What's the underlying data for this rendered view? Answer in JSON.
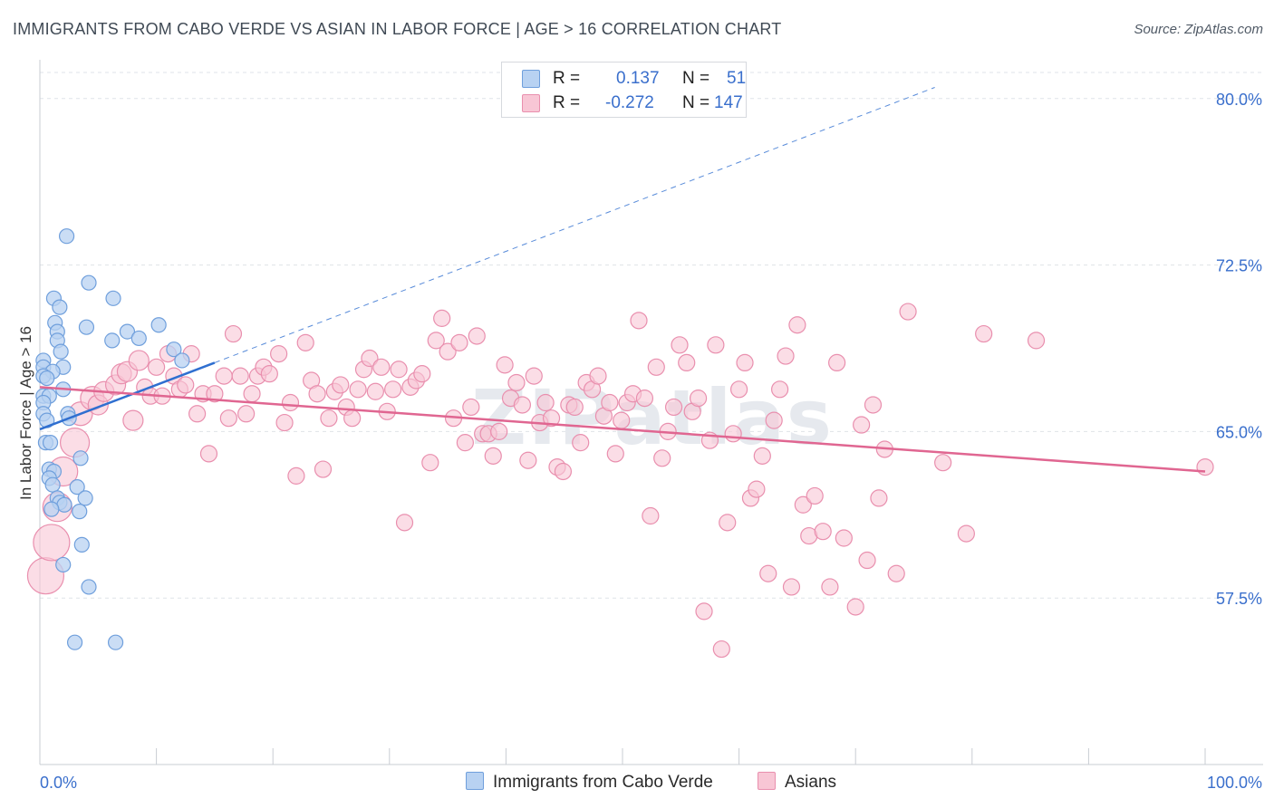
{
  "title": "IMMIGRANTS FROM CABO VERDE VS ASIAN IN LABOR FORCE | AGE > 16 CORRELATION CHART",
  "source": "Source: ZipAtlas.com",
  "watermark": "ZIPatlas",
  "legend": {
    "rows": [
      {
        "r_label": "R =",
        "r_value": "0.137",
        "n_label": "N =",
        "n_value": "51"
      },
      {
        "r_label": "R =",
        "r_value": "-0.272",
        "n_label": "N =",
        "n_value": "147"
      }
    ]
  },
  "chart_data": {
    "type": "scatter",
    "xlabel": "",
    "ylabel": "In Labor Force | Age > 16",
    "xlim": [
      0,
      100
    ],
    "ylim": [
      50.0,
      81.5
    ],
    "x_tick_labels": [
      "0.0%",
      "100.0%"
    ],
    "y_ticks": [
      57.5,
      65.0,
      72.5,
      80.0
    ],
    "y_tick_labels": [
      "57.5%",
      "65.0%",
      "72.5%",
      "80.0%"
    ],
    "grid": true,
    "legend_position": "top-center",
    "colors": {
      "series1_fill": "#b8d2f2",
      "series1_stroke": "#6f9fdc",
      "series1_line": "#2f6fd0",
      "series2_fill": "#f8c6d5",
      "series2_stroke": "#e98fae",
      "series2_line": "#e06691",
      "tick_label": "#3a6fcc",
      "grid": "#dfe3e8"
    },
    "series": [
      {
        "name": "Immigrants from Cabo Verde",
        "trend": {
          "x": [
            0,
            15
          ],
          "y": [
            65.1,
            68.1
          ]
        },
        "trend_extended": {
          "x": [
            15,
            76.8
          ],
          "y": [
            68.1,
            80.5
          ]
        },
        "points": [
          {
            "x": 2.3,
            "y": 73.8
          },
          {
            "x": 4.2,
            "y": 71.7
          },
          {
            "x": 6.3,
            "y": 71.0
          },
          {
            "x": 1.2,
            "y": 71.0
          },
          {
            "x": 1.7,
            "y": 70.6
          },
          {
            "x": 1.3,
            "y": 69.9
          },
          {
            "x": 4.0,
            "y": 69.7
          },
          {
            "x": 10.2,
            "y": 69.8
          },
          {
            "x": 1.5,
            "y": 69.5
          },
          {
            "x": 7.5,
            "y": 69.5
          },
          {
            "x": 1.5,
            "y": 69.1
          },
          {
            "x": 6.2,
            "y": 69.1
          },
          {
            "x": 8.5,
            "y": 69.2
          },
          {
            "x": 11.5,
            "y": 68.7
          },
          {
            "x": 1.8,
            "y": 68.6
          },
          {
            "x": 12.2,
            "y": 68.2
          },
          {
            "x": 0.3,
            "y": 68.2
          },
          {
            "x": 0.3,
            "y": 67.9
          },
          {
            "x": 2.0,
            "y": 67.9
          },
          {
            "x": 1.1,
            "y": 67.7
          },
          {
            "x": 0.3,
            "y": 67.5
          },
          {
            "x": 0.6,
            "y": 67.4
          },
          {
            "x": 2.0,
            "y": 66.9
          },
          {
            "x": 0.3,
            "y": 66.6
          },
          {
            "x": 0.8,
            "y": 66.6
          },
          {
            "x": 0.3,
            "y": 66.3
          },
          {
            "x": 2.4,
            "y": 65.8
          },
          {
            "x": 0.3,
            "y": 65.8
          },
          {
            "x": 0.6,
            "y": 65.5
          },
          {
            "x": 2.5,
            "y": 65.6
          },
          {
            "x": 0.5,
            "y": 64.5
          },
          {
            "x": 0.9,
            "y": 64.5
          },
          {
            "x": 3.5,
            "y": 63.8
          },
          {
            "x": 0.8,
            "y": 63.3
          },
          {
            "x": 1.2,
            "y": 63.2
          },
          {
            "x": 0.8,
            "y": 62.9
          },
          {
            "x": 1.1,
            "y": 62.6
          },
          {
            "x": 3.2,
            "y": 62.5
          },
          {
            "x": 1.5,
            "y": 62.0
          },
          {
            "x": 3.9,
            "y": 62.0
          },
          {
            "x": 1.7,
            "y": 61.8
          },
          {
            "x": 2.1,
            "y": 61.7
          },
          {
            "x": 1.0,
            "y": 61.5
          },
          {
            "x": 3.4,
            "y": 61.4
          },
          {
            "x": 3.6,
            "y": 59.9
          },
          {
            "x": 2.0,
            "y": 59.0
          },
          {
            "x": 4.2,
            "y": 58.0
          },
          {
            "x": 3.0,
            "y": 55.5
          },
          {
            "x": 6.5,
            "y": 55.5
          }
        ]
      },
      {
        "name": "Asians",
        "trend": {
          "x": [
            0,
            100
          ],
          "y": [
            67.0,
            63.2
          ]
        },
        "points": [
          {
            "x": 0.5,
            "y": 58.5,
            "r": 20
          },
          {
            "x": 1.0,
            "y": 60.0,
            "r": 20
          },
          {
            "x": 1.5,
            "y": 61.6,
            "r": 16
          },
          {
            "x": 2.0,
            "y": 63.2,
            "r": 16
          },
          {
            "x": 3.0,
            "y": 64.5,
            "r": 16
          },
          {
            "x": 3.5,
            "y": 65.8,
            "r": 13
          },
          {
            "x": 4.5,
            "y": 66.5,
            "r": 13
          },
          {
            "x": 5.0,
            "y": 66.2,
            "r": 11
          },
          {
            "x": 5.5,
            "y": 66.8,
            "r": 11
          },
          {
            "x": 6.5,
            "y": 67.1,
            "r": 11
          },
          {
            "x": 7.0,
            "y": 67.6,
            "r": 11
          },
          {
            "x": 7.5,
            "y": 67.7,
            "r": 11
          },
          {
            "x": 8.0,
            "y": 65.5,
            "r": 11
          },
          {
            "x": 8.5,
            "y": 68.2,
            "r": 11
          },
          {
            "x": 9.0,
            "y": 67.0
          },
          {
            "x": 9.5,
            "y": 66.6
          },
          {
            "x": 10.0,
            "y": 67.9
          },
          {
            "x": 10.5,
            "y": 66.6
          },
          {
            "x": 11.0,
            "y": 68.5
          },
          {
            "x": 11.5,
            "y": 67.5
          },
          {
            "x": 12.0,
            "y": 66.9
          },
          {
            "x": 12.5,
            "y": 67.1
          },
          {
            "x": 13.0,
            "y": 68.5
          },
          {
            "x": 13.5,
            "y": 65.8
          },
          {
            "x": 14.0,
            "y": 66.7
          },
          {
            "x": 14.5,
            "y": 64.0
          },
          {
            "x": 15.0,
            "y": 66.7
          },
          {
            "x": 15.8,
            "y": 67.5
          },
          {
            "x": 16.2,
            "y": 65.6
          },
          {
            "x": 16.6,
            "y": 69.4
          },
          {
            "x": 17.2,
            "y": 67.5
          },
          {
            "x": 17.7,
            "y": 65.8
          },
          {
            "x": 18.2,
            "y": 66.7
          },
          {
            "x": 18.7,
            "y": 67.5
          },
          {
            "x": 19.2,
            "y": 67.9
          },
          {
            "x": 19.7,
            "y": 67.6
          },
          {
            "x": 20.5,
            "y": 68.5
          },
          {
            "x": 21.0,
            "y": 65.4
          },
          {
            "x": 21.5,
            "y": 66.3
          },
          {
            "x": 22.0,
            "y": 63.0
          },
          {
            "x": 22.8,
            "y": 69.0
          },
          {
            "x": 23.3,
            "y": 67.3
          },
          {
            "x": 23.8,
            "y": 66.7
          },
          {
            "x": 24.3,
            "y": 63.3
          },
          {
            "x": 24.8,
            "y": 65.6
          },
          {
            "x": 25.3,
            "y": 66.8
          },
          {
            "x": 25.8,
            "y": 67.1
          },
          {
            "x": 26.3,
            "y": 66.1
          },
          {
            "x": 26.8,
            "y": 65.6
          },
          {
            "x": 27.3,
            "y": 66.9
          },
          {
            "x": 27.8,
            "y": 67.8
          },
          {
            "x": 28.3,
            "y": 68.3
          },
          {
            "x": 28.8,
            "y": 66.8
          },
          {
            "x": 29.3,
            "y": 67.9
          },
          {
            "x": 29.8,
            "y": 65.9
          },
          {
            "x": 30.3,
            "y": 66.9
          },
          {
            "x": 30.8,
            "y": 67.8
          },
          {
            "x": 31.3,
            "y": 60.9
          },
          {
            "x": 31.8,
            "y": 67.0
          },
          {
            "x": 32.3,
            "y": 67.3
          },
          {
            "x": 32.8,
            "y": 67.6
          },
          {
            "x": 33.5,
            "y": 63.6
          },
          {
            "x": 34.0,
            "y": 69.1
          },
          {
            "x": 34.5,
            "y": 70.1
          },
          {
            "x": 35.0,
            "y": 68.6
          },
          {
            "x": 35.5,
            "y": 65.6
          },
          {
            "x": 36.0,
            "y": 69.0
          },
          {
            "x": 36.5,
            "y": 64.5
          },
          {
            "x": 37.0,
            "y": 66.1
          },
          {
            "x": 37.5,
            "y": 69.3
          },
          {
            "x": 38.0,
            "y": 64.9
          },
          {
            "x": 38.5,
            "y": 64.9
          },
          {
            "x": 38.9,
            "y": 63.9
          },
          {
            "x": 39.4,
            "y": 65.0
          },
          {
            "x": 39.9,
            "y": 68.0
          },
          {
            "x": 40.4,
            "y": 66.5
          },
          {
            "x": 40.9,
            "y": 67.2
          },
          {
            "x": 41.4,
            "y": 66.2
          },
          {
            "x": 41.9,
            "y": 63.7
          },
          {
            "x": 42.4,
            "y": 67.5
          },
          {
            "x": 42.9,
            "y": 65.4
          },
          {
            "x": 43.4,
            "y": 66.3
          },
          {
            "x": 43.9,
            "y": 65.6
          },
          {
            "x": 44.4,
            "y": 63.4
          },
          {
            "x": 44.9,
            "y": 63.2
          },
          {
            "x": 45.4,
            "y": 66.2
          },
          {
            "x": 45.9,
            "y": 66.1
          },
          {
            "x": 46.4,
            "y": 64.5
          },
          {
            "x": 46.9,
            "y": 67.2
          },
          {
            "x": 47.4,
            "y": 66.9
          },
          {
            "x": 47.9,
            "y": 67.5
          },
          {
            "x": 48.4,
            "y": 65.7
          },
          {
            "x": 48.9,
            "y": 66.3
          },
          {
            "x": 49.4,
            "y": 64.0
          },
          {
            "x": 49.9,
            "y": 65.5
          },
          {
            "x": 50.4,
            "y": 66.3
          },
          {
            "x": 50.9,
            "y": 66.7
          },
          {
            "x": 51.4,
            "y": 70.0
          },
          {
            "x": 51.9,
            "y": 66.5
          },
          {
            "x": 52.4,
            "y": 61.2
          },
          {
            "x": 52.9,
            "y": 67.9
          },
          {
            "x": 53.4,
            "y": 63.8
          },
          {
            "x": 53.9,
            "y": 65.0
          },
          {
            "x": 54.4,
            "y": 66.1
          },
          {
            "x": 54.9,
            "y": 68.9
          },
          {
            "x": 55.5,
            "y": 68.1
          },
          {
            "x": 56.0,
            "y": 65.9
          },
          {
            "x": 56.5,
            "y": 66.5
          },
          {
            "x": 57.0,
            "y": 56.9
          },
          {
            "x": 57.5,
            "y": 64.6
          },
          {
            "x": 58.0,
            "y": 68.9
          },
          {
            "x": 58.5,
            "y": 55.2
          },
          {
            "x": 59.0,
            "y": 60.9
          },
          {
            "x": 59.5,
            "y": 64.9
          },
          {
            "x": 60.0,
            "y": 66.9
          },
          {
            "x": 60.5,
            "y": 68.1
          },
          {
            "x": 61.0,
            "y": 62.0
          },
          {
            "x": 61.5,
            "y": 62.4
          },
          {
            "x": 62.0,
            "y": 63.9
          },
          {
            "x": 62.5,
            "y": 58.6
          },
          {
            "x": 63.0,
            "y": 65.5
          },
          {
            "x": 63.5,
            "y": 66.9
          },
          {
            "x": 64.0,
            "y": 68.4
          },
          {
            "x": 64.5,
            "y": 58.0
          },
          {
            "x": 65.0,
            "y": 69.8
          },
          {
            "x": 65.5,
            "y": 61.7
          },
          {
            "x": 66.0,
            "y": 60.3
          },
          {
            "x": 66.5,
            "y": 62.1
          },
          {
            "x": 67.2,
            "y": 60.5
          },
          {
            "x": 67.8,
            "y": 58.0
          },
          {
            "x": 68.4,
            "y": 68.1
          },
          {
            "x": 69.0,
            "y": 60.2
          },
          {
            "x": 70.0,
            "y": 57.1
          },
          {
            "x": 70.5,
            "y": 65.3
          },
          {
            "x": 71.0,
            "y": 59.2
          },
          {
            "x": 71.5,
            "y": 66.2
          },
          {
            "x": 72.0,
            "y": 62.0
          },
          {
            "x": 72.5,
            "y": 64.2
          },
          {
            "x": 73.5,
            "y": 58.6
          },
          {
            "x": 74.5,
            "y": 70.4
          },
          {
            "x": 77.5,
            "y": 63.6
          },
          {
            "x": 79.5,
            "y": 60.4
          },
          {
            "x": 81.0,
            "y": 69.4
          },
          {
            "x": 85.5,
            "y": 69.1
          },
          {
            "x": 100.0,
            "y": 63.4
          }
        ]
      }
    ]
  }
}
